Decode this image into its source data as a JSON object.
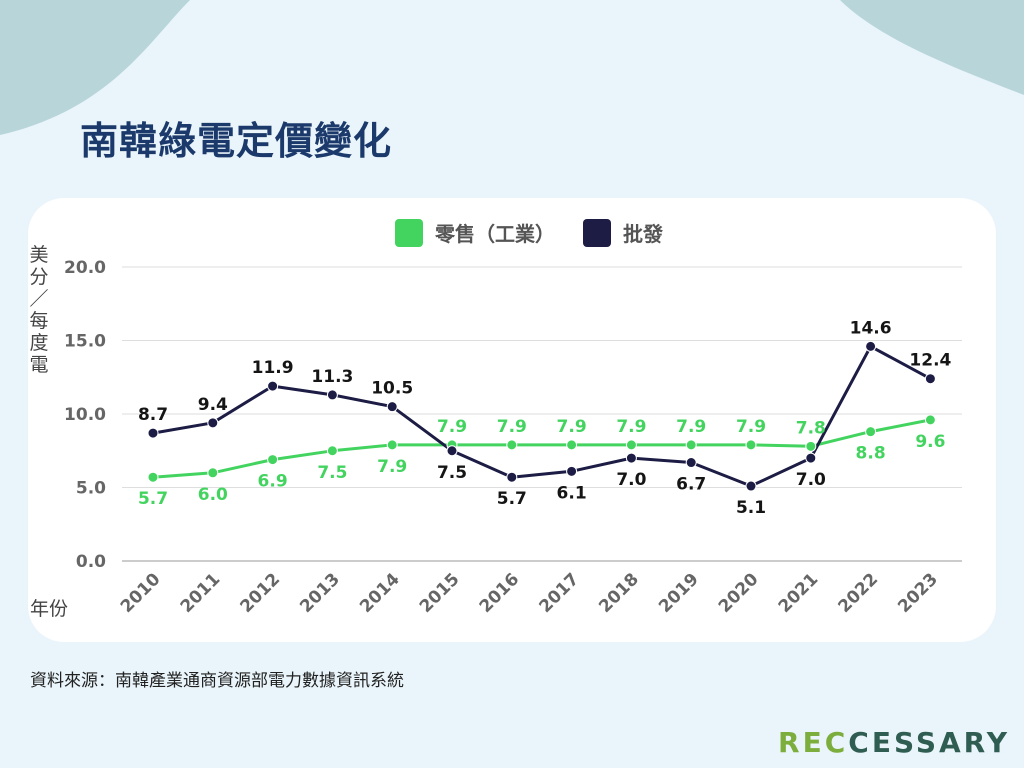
{
  "title": "南韓綠電定價變化",
  "chart_data": {
    "type": "line",
    "categories": [
      "2010",
      "2011",
      "2012",
      "2013",
      "2014",
      "2015",
      "2016",
      "2017",
      "2018",
      "2019",
      "2020",
      "2021",
      "2022",
      "2023"
    ],
    "series": [
      {
        "name": "零售（工業）",
        "color": "#43d45f",
        "values": [
          5.7,
          6.0,
          6.9,
          7.5,
          7.9,
          7.9,
          7.9,
          7.9,
          7.9,
          7.9,
          7.9,
          7.8,
          8.8,
          9.6
        ]
      },
      {
        "name": "批發",
        "color": "#1c1c45",
        "values": [
          8.7,
          9.4,
          11.9,
          11.3,
          10.5,
          7.5,
          5.7,
          6.1,
          7.0,
          6.7,
          5.1,
          7.0,
          14.6,
          12.4
        ]
      }
    ],
    "ylim": [
      0,
      20
    ],
    "yticks": [
      "0.0",
      "5.0",
      "10.0",
      "15.0",
      "20.0"
    ],
    "ylabel": "美分／每度電",
    "xlabel": "年份",
    "grid": true,
    "legend": "top-center"
  },
  "source": "資料來源：南韓產業通商資源部電力數據資訊系統",
  "logo": {
    "accent": "REC",
    "rest": "CESSARY"
  },
  "colors": {
    "background": "#eaf5fb",
    "blob": "#b8d6da",
    "title": "#1b3a6b"
  }
}
